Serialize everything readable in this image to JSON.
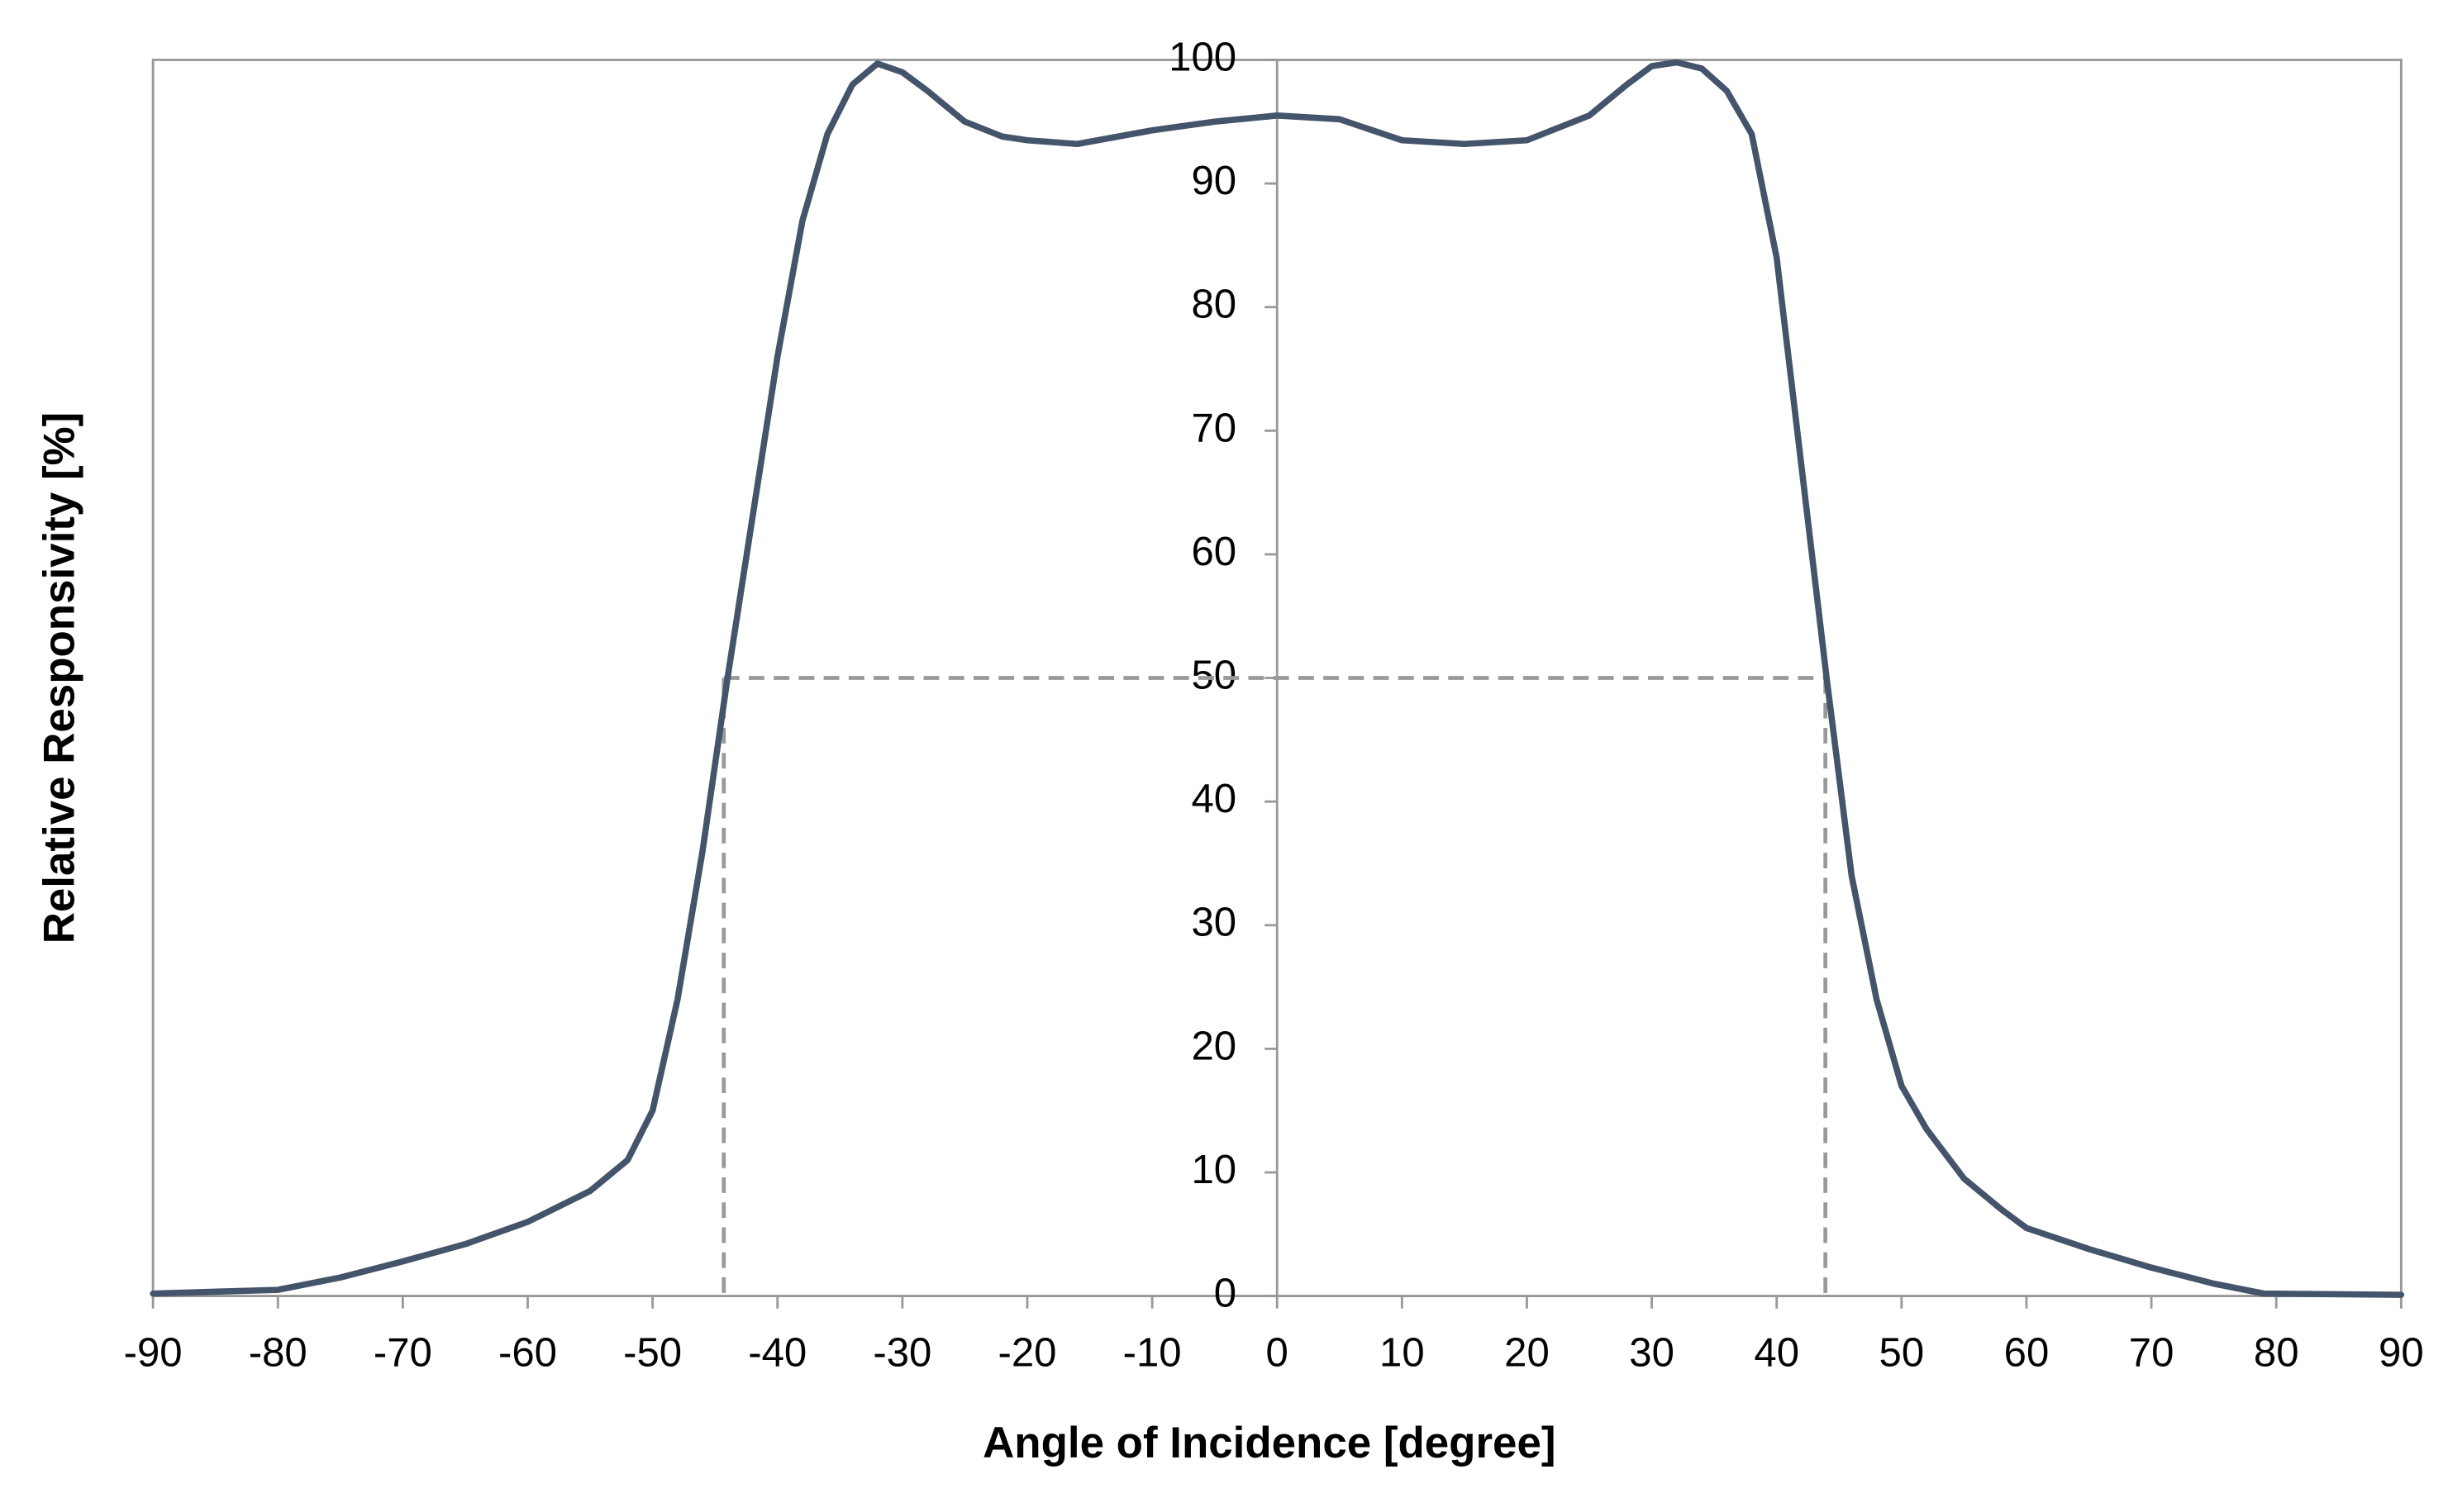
{
  "chart_data": {
    "type": "line",
    "x_label": "Angle of Incidence [degree]",
    "y_label": "Relative Responsivity [%]",
    "x": [
      -90,
      -80,
      -75,
      -70,
      -65,
      -60,
      -55,
      -52,
      -50,
      -48,
      -46,
      -44,
      -42,
      -40,
      -38,
      -36,
      -34,
      -32,
      -30,
      -28,
      -25,
      -22,
      -20,
      -16,
      -10,
      -5,
      0,
      5,
      10,
      15,
      20,
      25,
      28,
      30,
      32,
      34,
      36,
      38,
      40,
      42,
      44,
      46,
      48,
      50,
      52,
      55,
      58,
      60,
      65,
      70,
      75,
      79,
      90
    ],
    "series": [
      {
        "color": "#44546a",
        "values": [
          0.2,
          0.5,
          1.5,
          2.8,
          4.2,
          6.0,
          8.5,
          11,
          15,
          24,
          36,
          50,
          63,
          76,
          87,
          94,
          98,
          99.7,
          99,
          97.5,
          95,
          93.8,
          93.5,
          93.2,
          94.3,
          95,
          95.5,
          95.2,
          93.5,
          93.2,
          93.5,
          95.5,
          98,
          99.5,
          99.8,
          99.3,
          97.5,
          94,
          84,
          67,
          50,
          34,
          24,
          17,
          13.5,
          9.5,
          7,
          5.5,
          3.8,
          2.3,
          1,
          0.2,
          0.1
        ]
      }
    ],
    "half_max": {
      "y": 50,
      "x": [
        -44.3,
        43.9
      ],
      "color": "#999999"
    },
    "xlim": [
      -90,
      90
    ],
    "xticks": [
      -90,
      -80,
      -70,
      -60,
      -50,
      -40,
      -30,
      -20,
      -10,
      0,
      10,
      20,
      30,
      40,
      50,
      60,
      70,
      80,
      90
    ],
    "ylim": [
      0,
      100
    ],
    "yticks": [
      0,
      10,
      20,
      30,
      40,
      50,
      60,
      70,
      80,
      90,
      100
    ]
  }
}
